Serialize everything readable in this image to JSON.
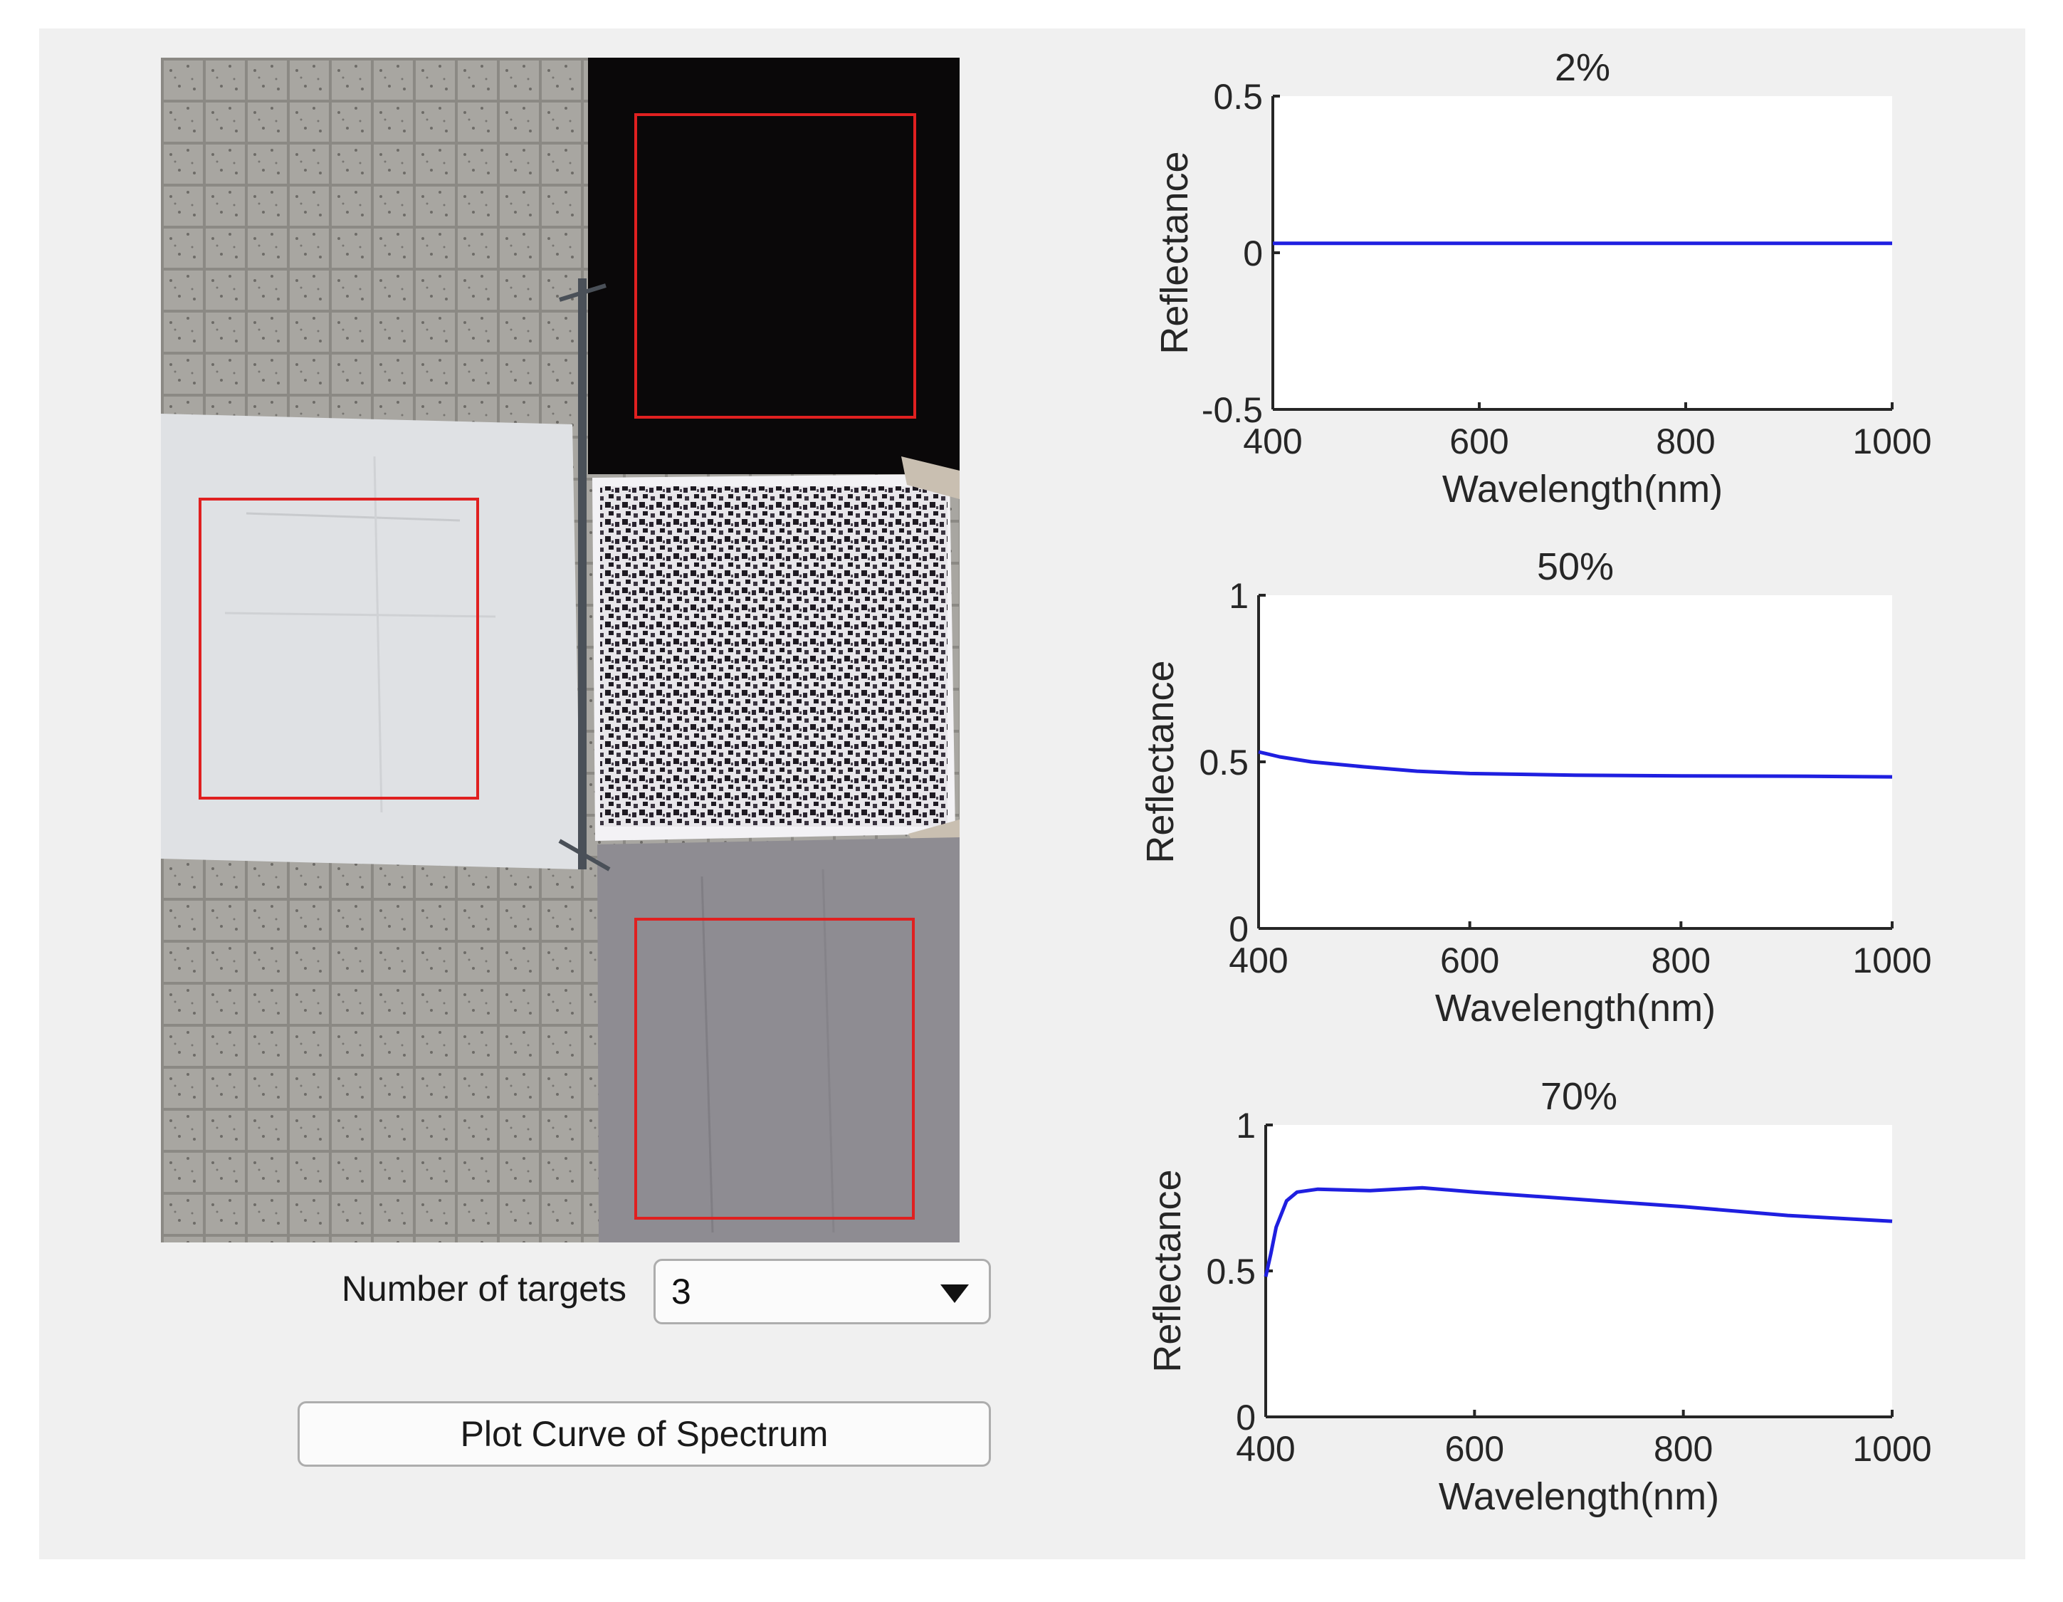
{
  "controls": {
    "targets_label": "Number of targets",
    "targets_value": "3",
    "plot_button_label": "Plot Curve of Spectrum"
  },
  "scene": {
    "description_icons": [
      "tile-floor",
      "dark-calibration-panel",
      "checkerboard-panel",
      "white-calibration-cloth",
      "grey-calibration-cloth"
    ],
    "roi_color": "#e02020"
  },
  "chart_data": [
    {
      "type": "line",
      "title": "2%",
      "xlabel": "Wavelength(nm)",
      "ylabel": "Reflectance",
      "xlim": [
        400,
        1000
      ],
      "ylim": [
        -0.5,
        0.5
      ],
      "xticks": [
        "400",
        "600",
        "800",
        "1000"
      ],
      "yticks": [
        "0.5",
        "0",
        "-0.5"
      ],
      "series": [
        {
          "color": "#1f1fe0",
          "x": [
            400,
            500,
            600,
            700,
            800,
            900,
            1000
          ],
          "y": [
            0.03,
            0.03,
            0.03,
            0.03,
            0.03,
            0.03,
            0.03
          ]
        }
      ]
    },
    {
      "type": "line",
      "title": "50%",
      "xlabel": "Wavelength(nm)",
      "ylabel": "Reflectance",
      "xlim": [
        400,
        1000
      ],
      "ylim": [
        0,
        1
      ],
      "xticks": [
        "400",
        "600",
        "800",
        "1000"
      ],
      "yticks": [
        "1",
        "0.5",
        "0"
      ],
      "series": [
        {
          "color": "#1f1fe0",
          "x": [
            400,
            420,
            450,
            500,
            550,
            600,
            700,
            800,
            900,
            1000
          ],
          "y": [
            0.53,
            0.515,
            0.5,
            0.485,
            0.472,
            0.465,
            0.46,
            0.458,
            0.457,
            0.455
          ]
        }
      ]
    },
    {
      "type": "line",
      "title": "70%",
      "xlabel": "Wavelength(nm)",
      "ylabel": "Reflectance",
      "xlim": [
        400,
        1000
      ],
      "ylim": [
        0,
        1
      ],
      "xticks": [
        "400",
        "600",
        "800",
        "1000"
      ],
      "yticks": [
        "1",
        "0.5",
        "0"
      ],
      "series": [
        {
          "color": "#1f1fe0",
          "x": [
            400,
            405,
            410,
            420,
            430,
            450,
            500,
            550,
            600,
            700,
            800,
            900,
            1000
          ],
          "y": [
            0.48,
            0.56,
            0.65,
            0.74,
            0.77,
            0.78,
            0.775,
            0.785,
            0.77,
            0.745,
            0.72,
            0.69,
            0.67
          ]
        }
      ]
    }
  ]
}
